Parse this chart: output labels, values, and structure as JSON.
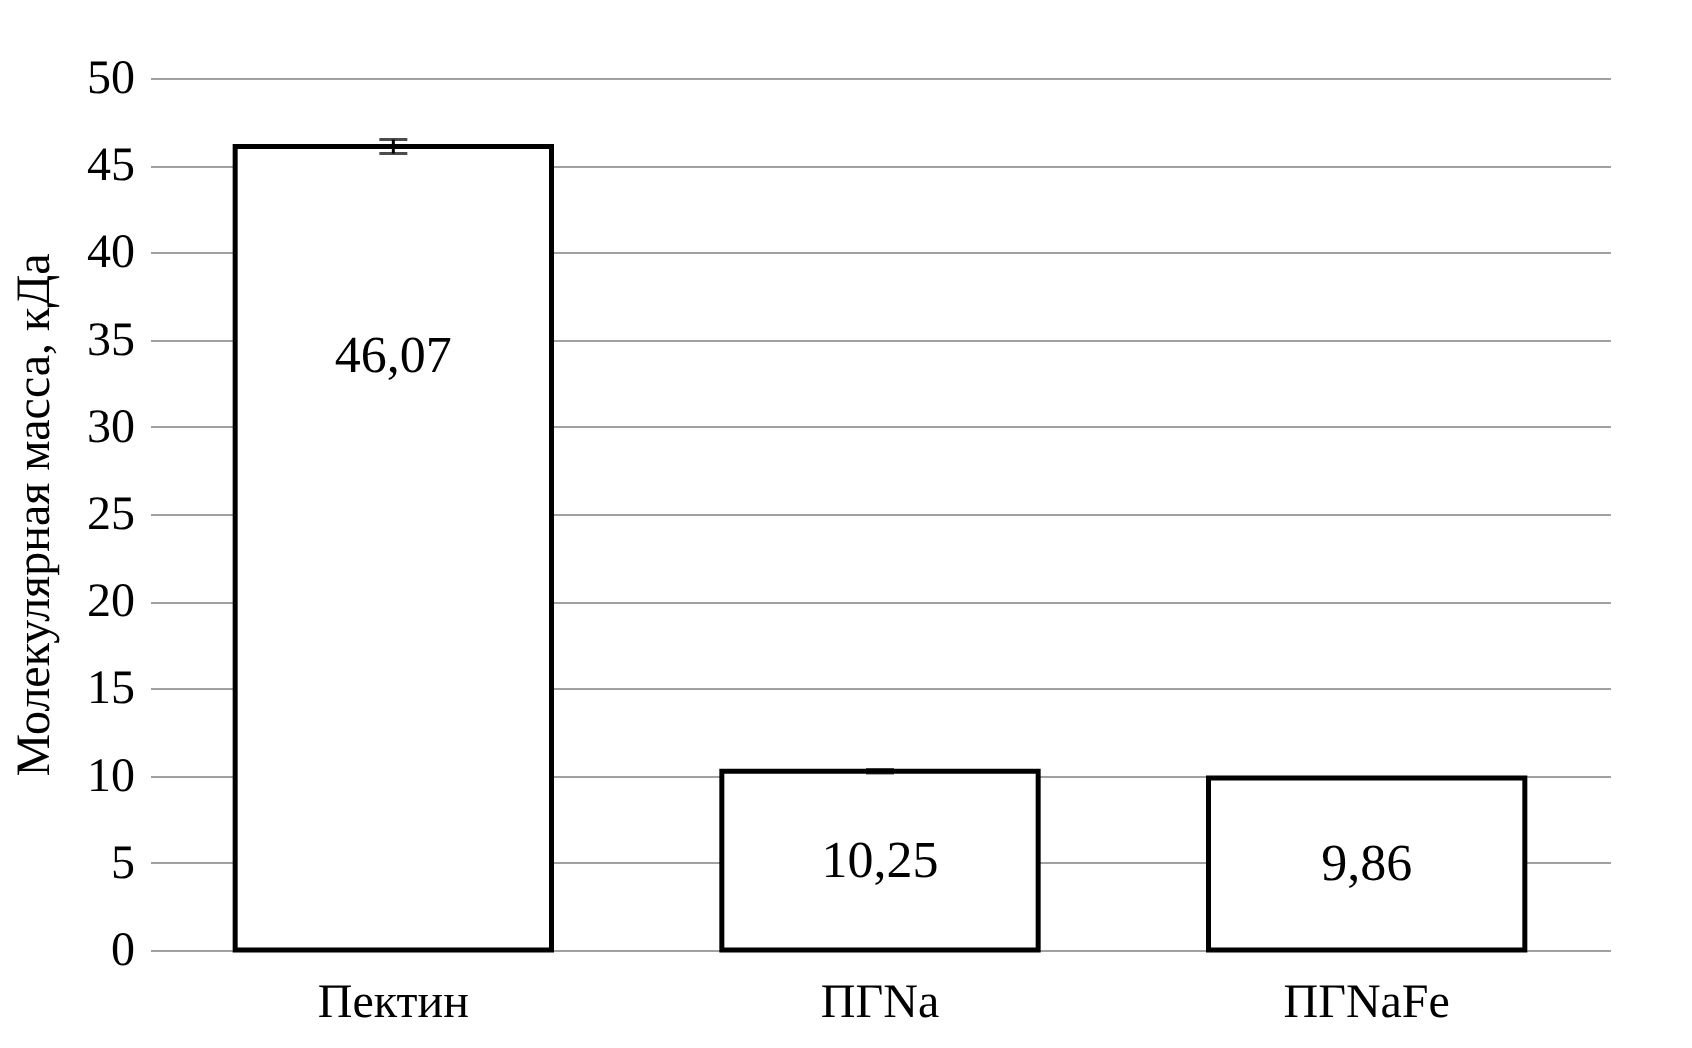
{
  "chart_data": {
    "type": "bar",
    "ylabel": "Молекулярная  масса,  кДа",
    "categories": [
      "Пектин",
      "ПГNa",
      "ПГNaFe"
    ],
    "values": [
      46.07,
      10.25,
      9.86
    ],
    "errors": [
      0.4,
      0.1,
      null
    ],
    "value_labels": [
      "46,07",
      "10,25",
      "9,86"
    ],
    "color": "#ffffff",
    "ylim": [
      0,
      50
    ],
    "yticks": [
      0,
      5,
      10,
      15,
      20,
      25,
      30,
      35,
      40,
      45,
      50
    ],
    "grid": "y"
  }
}
